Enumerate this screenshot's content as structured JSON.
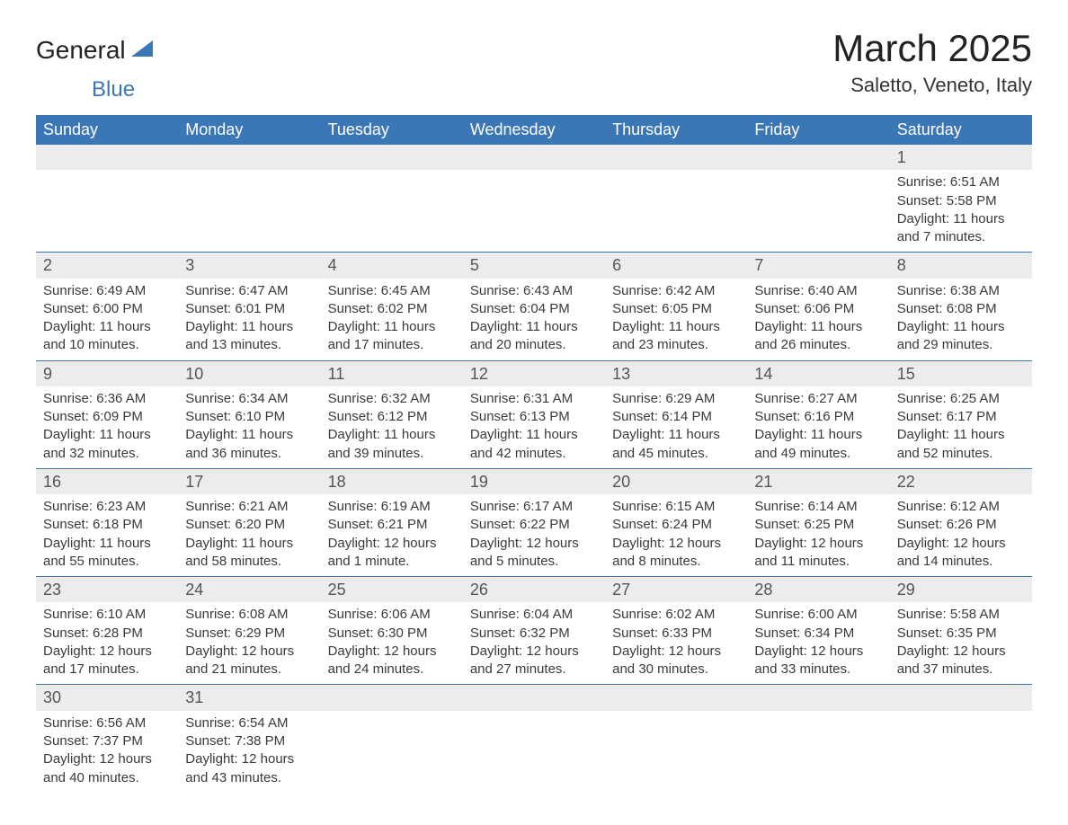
{
  "brand": {
    "text1": "General",
    "text2": "Blue",
    "sail_color": "#3b77b7"
  },
  "title": "March 2025",
  "location": "Saletto, Veneto, Italy",
  "colors": {
    "header_bg": "#3b77b7",
    "header_text": "#ffffff",
    "daynum_bg": "#ececec",
    "border": "#3b77b7",
    "body_text": "#3a3a3a",
    "background": "#ffffff"
  },
  "typography": {
    "title_fontsize": 42,
    "location_fontsize": 22,
    "header_fontsize": 18,
    "daynum_fontsize": 18,
    "body_fontsize": 15
  },
  "columns": [
    "Sunday",
    "Monday",
    "Tuesday",
    "Wednesday",
    "Thursday",
    "Friday",
    "Saturday"
  ],
  "weeks": [
    [
      null,
      null,
      null,
      null,
      null,
      null,
      {
        "d": "1",
        "sr": "Sunrise: 6:51 AM",
        "ss": "Sunset: 5:58 PM",
        "dl1": "Daylight: 11 hours",
        "dl2": "and 7 minutes."
      }
    ],
    [
      {
        "d": "2",
        "sr": "Sunrise: 6:49 AM",
        "ss": "Sunset: 6:00 PM",
        "dl1": "Daylight: 11 hours",
        "dl2": "and 10 minutes."
      },
      {
        "d": "3",
        "sr": "Sunrise: 6:47 AM",
        "ss": "Sunset: 6:01 PM",
        "dl1": "Daylight: 11 hours",
        "dl2": "and 13 minutes."
      },
      {
        "d": "4",
        "sr": "Sunrise: 6:45 AM",
        "ss": "Sunset: 6:02 PM",
        "dl1": "Daylight: 11 hours",
        "dl2": "and 17 minutes."
      },
      {
        "d": "5",
        "sr": "Sunrise: 6:43 AM",
        "ss": "Sunset: 6:04 PM",
        "dl1": "Daylight: 11 hours",
        "dl2": "and 20 minutes."
      },
      {
        "d": "6",
        "sr": "Sunrise: 6:42 AM",
        "ss": "Sunset: 6:05 PM",
        "dl1": "Daylight: 11 hours",
        "dl2": "and 23 minutes."
      },
      {
        "d": "7",
        "sr": "Sunrise: 6:40 AM",
        "ss": "Sunset: 6:06 PM",
        "dl1": "Daylight: 11 hours",
        "dl2": "and 26 minutes."
      },
      {
        "d": "8",
        "sr": "Sunrise: 6:38 AM",
        "ss": "Sunset: 6:08 PM",
        "dl1": "Daylight: 11 hours",
        "dl2": "and 29 minutes."
      }
    ],
    [
      {
        "d": "9",
        "sr": "Sunrise: 6:36 AM",
        "ss": "Sunset: 6:09 PM",
        "dl1": "Daylight: 11 hours",
        "dl2": "and 32 minutes."
      },
      {
        "d": "10",
        "sr": "Sunrise: 6:34 AM",
        "ss": "Sunset: 6:10 PM",
        "dl1": "Daylight: 11 hours",
        "dl2": "and 36 minutes."
      },
      {
        "d": "11",
        "sr": "Sunrise: 6:32 AM",
        "ss": "Sunset: 6:12 PM",
        "dl1": "Daylight: 11 hours",
        "dl2": "and 39 minutes."
      },
      {
        "d": "12",
        "sr": "Sunrise: 6:31 AM",
        "ss": "Sunset: 6:13 PM",
        "dl1": "Daylight: 11 hours",
        "dl2": "and 42 minutes."
      },
      {
        "d": "13",
        "sr": "Sunrise: 6:29 AM",
        "ss": "Sunset: 6:14 PM",
        "dl1": "Daylight: 11 hours",
        "dl2": "and 45 minutes."
      },
      {
        "d": "14",
        "sr": "Sunrise: 6:27 AM",
        "ss": "Sunset: 6:16 PM",
        "dl1": "Daylight: 11 hours",
        "dl2": "and 49 minutes."
      },
      {
        "d": "15",
        "sr": "Sunrise: 6:25 AM",
        "ss": "Sunset: 6:17 PM",
        "dl1": "Daylight: 11 hours",
        "dl2": "and 52 minutes."
      }
    ],
    [
      {
        "d": "16",
        "sr": "Sunrise: 6:23 AM",
        "ss": "Sunset: 6:18 PM",
        "dl1": "Daylight: 11 hours",
        "dl2": "and 55 minutes."
      },
      {
        "d": "17",
        "sr": "Sunrise: 6:21 AM",
        "ss": "Sunset: 6:20 PM",
        "dl1": "Daylight: 11 hours",
        "dl2": "and 58 minutes."
      },
      {
        "d": "18",
        "sr": "Sunrise: 6:19 AM",
        "ss": "Sunset: 6:21 PM",
        "dl1": "Daylight: 12 hours",
        "dl2": "and 1 minute."
      },
      {
        "d": "19",
        "sr": "Sunrise: 6:17 AM",
        "ss": "Sunset: 6:22 PM",
        "dl1": "Daylight: 12 hours",
        "dl2": "and 5 minutes."
      },
      {
        "d": "20",
        "sr": "Sunrise: 6:15 AM",
        "ss": "Sunset: 6:24 PM",
        "dl1": "Daylight: 12 hours",
        "dl2": "and 8 minutes."
      },
      {
        "d": "21",
        "sr": "Sunrise: 6:14 AM",
        "ss": "Sunset: 6:25 PM",
        "dl1": "Daylight: 12 hours",
        "dl2": "and 11 minutes."
      },
      {
        "d": "22",
        "sr": "Sunrise: 6:12 AM",
        "ss": "Sunset: 6:26 PM",
        "dl1": "Daylight: 12 hours",
        "dl2": "and 14 minutes."
      }
    ],
    [
      {
        "d": "23",
        "sr": "Sunrise: 6:10 AM",
        "ss": "Sunset: 6:28 PM",
        "dl1": "Daylight: 12 hours",
        "dl2": "and 17 minutes."
      },
      {
        "d": "24",
        "sr": "Sunrise: 6:08 AM",
        "ss": "Sunset: 6:29 PM",
        "dl1": "Daylight: 12 hours",
        "dl2": "and 21 minutes."
      },
      {
        "d": "25",
        "sr": "Sunrise: 6:06 AM",
        "ss": "Sunset: 6:30 PM",
        "dl1": "Daylight: 12 hours",
        "dl2": "and 24 minutes."
      },
      {
        "d": "26",
        "sr": "Sunrise: 6:04 AM",
        "ss": "Sunset: 6:32 PM",
        "dl1": "Daylight: 12 hours",
        "dl2": "and 27 minutes."
      },
      {
        "d": "27",
        "sr": "Sunrise: 6:02 AM",
        "ss": "Sunset: 6:33 PM",
        "dl1": "Daylight: 12 hours",
        "dl2": "and 30 minutes."
      },
      {
        "d": "28",
        "sr": "Sunrise: 6:00 AM",
        "ss": "Sunset: 6:34 PM",
        "dl1": "Daylight: 12 hours",
        "dl2": "and 33 minutes."
      },
      {
        "d": "29",
        "sr": "Sunrise: 5:58 AM",
        "ss": "Sunset: 6:35 PM",
        "dl1": "Daylight: 12 hours",
        "dl2": "and 37 minutes."
      }
    ],
    [
      {
        "d": "30",
        "sr": "Sunrise: 6:56 AM",
        "ss": "Sunset: 7:37 PM",
        "dl1": "Daylight: 12 hours",
        "dl2": "and 40 minutes."
      },
      {
        "d": "31",
        "sr": "Sunrise: 6:54 AM",
        "ss": "Sunset: 7:38 PM",
        "dl1": "Daylight: 12 hours",
        "dl2": "and 43 minutes."
      },
      null,
      null,
      null,
      null,
      null
    ]
  ]
}
